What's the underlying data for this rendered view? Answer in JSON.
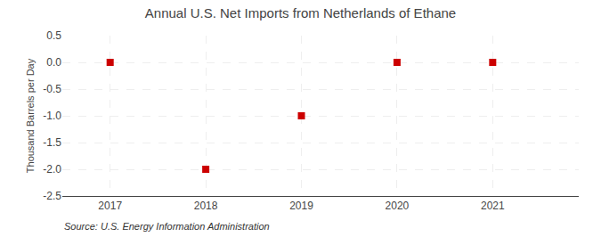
{
  "chart_data": {
    "type": "scatter",
    "title": "Annual U.S. Net Imports from Netherlands of Ethane",
    "ylabel": "Thousand Barrels per Day",
    "annotations": [
      "Source: U.S. Energy Information Administration"
    ],
    "x": [
      2017,
      2018,
      2019,
      2020,
      2021
    ],
    "values": [
      0.0,
      -2.0,
      -1.0,
      0.0,
      0.0
    ],
    "color": "#cc0000",
    "marker": "square",
    "xlim": [
      2016.5,
      2021.9
    ],
    "xticks": [
      2017,
      2018,
      2019,
      2020,
      2021
    ],
    "ylim": [
      -2.5,
      0.5
    ],
    "yticks": [
      0.5,
      {
        "value": 0,
        "label": "0.0"
      },
      -0.5,
      {
        "value": -1,
        "label": "-1.0"
      },
      -1.5,
      {
        "value": -2,
        "label": "-2.0"
      },
      -2.5
    ],
    "grid": true
  }
}
